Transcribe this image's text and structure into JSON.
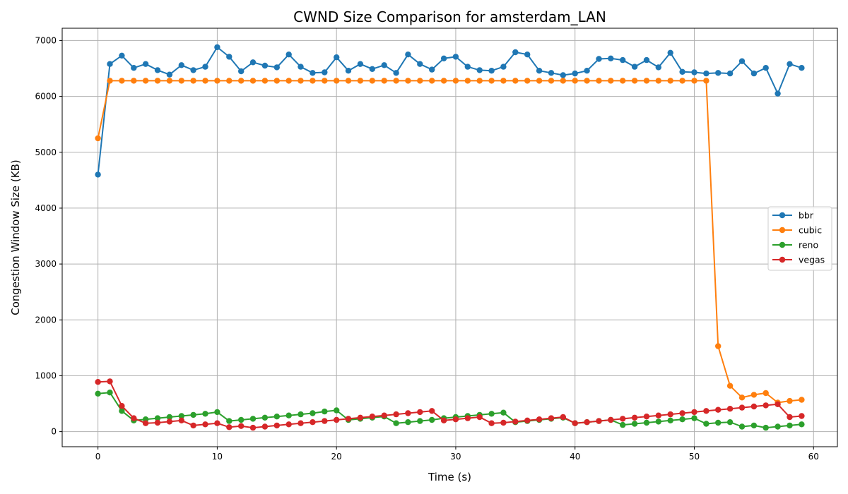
{
  "chart_data": {
    "type": "line",
    "title": "CWND Size Comparison for amsterdam_LAN",
    "xlabel": "Time (s)",
    "ylabel": "Congestion Window Size (KB)",
    "xlim": [
      -3,
      62
    ],
    "ylim": [
      -270,
      7220
    ],
    "xticks": [
      0,
      10,
      20,
      30,
      40,
      50,
      60
    ],
    "yticks": [
      0,
      1000,
      2000,
      3000,
      4000,
      5000,
      6000,
      7000
    ],
    "grid": true,
    "legend_position": "center-right",
    "x": [
      0,
      1,
      2,
      3,
      4,
      5,
      6,
      7,
      8,
      9,
      10,
      11,
      12,
      13,
      14,
      15,
      16,
      17,
      18,
      19,
      20,
      21,
      22,
      23,
      24,
      25,
      26,
      27,
      28,
      29,
      30,
      31,
      32,
      33,
      34,
      35,
      36,
      37,
      38,
      39,
      40,
      41,
      42,
      43,
      44,
      45,
      46,
      47,
      48,
      49,
      50,
      51,
      52,
      53,
      54,
      55,
      56,
      57,
      58,
      59
    ],
    "series": [
      {
        "name": "bbr",
        "color": "#1f77b4",
        "values": [
          4600,
          6580,
          6730,
          6510,
          6580,
          6470,
          6390,
          6560,
          6470,
          6530,
          6880,
          6710,
          6450,
          6610,
          6550,
          6520,
          6750,
          6530,
          6420,
          6430,
          6700,
          6460,
          6580,
          6490,
          6560,
          6420,
          6750,
          6580,
          6480,
          6680,
          6710,
          6530,
          6470,
          6460,
          6530,
          6790,
          6750,
          6460,
          6420,
          6380,
          6410,
          6460,
          6670,
          6680,
          6650,
          6530,
          6650,
          6520,
          6780,
          6440,
          6430,
          6410,
          6420,
          6410,
          6630,
          6410,
          6510,
          6050,
          6580,
          6510
        ]
      },
      {
        "name": "cubic",
        "color": "#ff7f0e",
        "values": [
          5250,
          6280,
          6280,
          6280,
          6280,
          6280,
          6280,
          6280,
          6280,
          6280,
          6280,
          6280,
          6280,
          6280,
          6280,
          6280,
          6280,
          6280,
          6280,
          6280,
          6280,
          6280,
          6280,
          6280,
          6280,
          6280,
          6280,
          6280,
          6280,
          6280,
          6280,
          6280,
          6280,
          6280,
          6280,
          6280,
          6280,
          6280,
          6280,
          6280,
          6280,
          6280,
          6280,
          6280,
          6280,
          6280,
          6280,
          6280,
          6280,
          6280,
          6280,
          6280,
          1530,
          820,
          610,
          660,
          690,
          520,
          550,
          570
        ]
      },
      {
        "name": "reno",
        "color": "#2ca02c",
        "values": [
          680,
          700,
          370,
          200,
          220,
          240,
          260,
          280,
          300,
          320,
          350,
          190,
          210,
          230,
          250,
          270,
          290,
          310,
          330,
          360,
          380,
          210,
          230,
          250,
          270,
          150,
          170,
          190,
          210,
          240,
          260,
          280,
          300,
          320,
          340,
          170,
          190,
          210,
          230,
          250,
          150,
          170,
          190,
          210,
          120,
          140,
          160,
          180,
          200,
          220,
          240,
          140,
          160,
          170,
          90,
          110,
          70,
          90,
          110,
          130
        ]
      },
      {
        "name": "vegas",
        "color": "#d62728",
        "values": [
          890,
          900,
          460,
          240,
          150,
          160,
          180,
          200,
          110,
          130,
          150,
          80,
          100,
          70,
          90,
          110,
          130,
          150,
          170,
          190,
          210,
          230,
          250,
          270,
          290,
          310,
          330,
          350,
          370,
          200,
          220,
          240,
          260,
          150,
          160,
          180,
          200,
          220,
          240,
          260,
          150,
          170,
          190,
          210,
          230,
          250,
          270,
          290,
          310,
          330,
          350,
          370,
          390,
          410,
          430,
          450,
          470,
          490,
          260,
          280
        ]
      }
    ]
  }
}
